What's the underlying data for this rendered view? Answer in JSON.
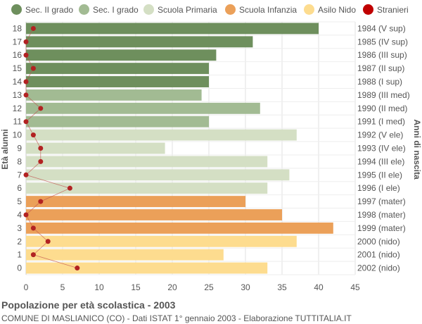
{
  "chart_data": {
    "type": "bar",
    "orientation": "horizontal",
    "title": "Popolazione per età scolastica - 2003",
    "subtitle": "COMUNE DI MASLIANICO (CO) - Dati ISTAT 1° gennaio 2003 - Elaborazione TUTTITALIA.IT",
    "ylabel_left": "Età alunni",
    "ylabel_right": "Anni di nascita",
    "xlim": [
      0,
      45
    ],
    "x_ticks": [
      0,
      5,
      10,
      15,
      20,
      25,
      30,
      35,
      40,
      45
    ],
    "grid": true,
    "legend_position": "top",
    "legend": [
      {
        "label": "Sec. II grado",
        "color": "#6e8f5d"
      },
      {
        "label": "Sec. I grado",
        "color": "#a2bb93"
      },
      {
        "label": "Scuola Primaria",
        "color": "#d4dfc4"
      },
      {
        "label": "Scuola Infanzia",
        "color": "#eba059"
      },
      {
        "label": "Asilo Nido",
        "color": "#fddc8f"
      },
      {
        "label": "Stranieri",
        "color": "#c00000"
      }
    ],
    "categories": [
      "18",
      "17",
      "16",
      "15",
      "14",
      "13",
      "12",
      "11",
      "10",
      "9",
      "8",
      "7",
      "6",
      "5",
      "4",
      "3",
      "2",
      "1",
      "0"
    ],
    "birth_years": [
      "1984 (V sup)",
      "1985 (IV sup)",
      "1986 (III sup)",
      "1987 (II sup)",
      "1988 (I sup)",
      "1989 (III med)",
      "1990 (II med)",
      "1991 (I med)",
      "1992 (V ele)",
      "1993 (IV ele)",
      "1994 (III ele)",
      "1995 (II ele)",
      "1996 (I ele)",
      "1997 (mater)",
      "1998 (mater)",
      "1999 (mater)",
      "2000 (nido)",
      "2001 (nido)",
      "2002 (nido)"
    ],
    "series": [
      {
        "name": "Popolazione",
        "values": [
          40,
          31,
          26,
          25,
          25,
          24,
          32,
          25,
          37,
          19,
          33,
          36,
          33,
          30,
          35,
          42,
          37,
          27,
          33
        ]
      },
      {
        "name": "Stranieri",
        "values": [
          1,
          0,
          0,
          1,
          0,
          0,
          2,
          0,
          1,
          2,
          2,
          0,
          6,
          2,
          0,
          1,
          3,
          1,
          7
        ]
      }
    ],
    "school_levels": [
      "Sec. II grado",
      "Sec. II grado",
      "Sec. II grado",
      "Sec. II grado",
      "Sec. II grado",
      "Sec. I grado",
      "Sec. I grado",
      "Sec. I grado",
      "Scuola Primaria",
      "Scuola Primaria",
      "Scuola Primaria",
      "Scuola Primaria",
      "Scuola Primaria",
      "Scuola Infanzia",
      "Scuola Infanzia",
      "Scuola Infanzia",
      "Asilo Nido",
      "Asilo Nido",
      "Asilo Nido"
    ]
  }
}
